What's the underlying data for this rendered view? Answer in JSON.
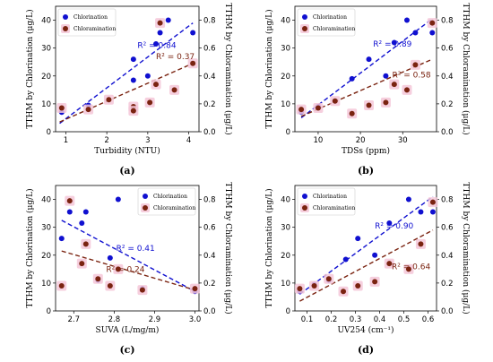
{
  "colors": {
    "chlorination": "#1010d0",
    "chloramination": "#7a2310",
    "halo": "#f4c7d8"
  },
  "chart_data": [
    {
      "id": "a",
      "type": "scatter",
      "panel_label": "(a)",
      "xlabel": "Turbidity (NTU)",
      "ylabel_left": "TTHM by Chlorination (μg/L)",
      "ylabel_right": "TTHM by Chloramination (μg/L)",
      "xlim": [
        0.75,
        4.25
      ],
      "xticks": [
        "1",
        "2",
        "3",
        "4"
      ],
      "ylim_left": [
        0,
        45
      ],
      "yticks_left": [
        "0",
        "10",
        "20",
        "30",
        "40"
      ],
      "ylim_right": [
        0,
        0.9
      ],
      "yticks_right": [
        "0.0",
        "0.2",
        "0.4",
        "0.6",
        "0.8"
      ],
      "legend_position": "top-left",
      "series": [
        {
          "name": "Chlorination",
          "axis": "left",
          "x": [
            0.9,
            1.55,
            2.65,
            2.65,
            3.0,
            3.2,
            3.3,
            3.5,
            4.1
          ],
          "y": [
            7,
            9.5,
            18.5,
            26,
            20,
            31.5,
            35.5,
            40,
            35.5
          ],
          "r2": "R² = 0.84",
          "trend": [
            [
              0.85,
              3
            ],
            [
              4.1,
              39
            ]
          ]
        },
        {
          "name": "Chloramination",
          "axis": "right",
          "x": [
            0.9,
            1.55,
            2.05,
            2.65,
            2.65,
            3.05,
            3.2,
            3.3,
            3.65,
            4.1
          ],
          "y": [
            0.17,
            0.16,
            0.23,
            0.18,
            0.15,
            0.21,
            0.34,
            0.78,
            0.3,
            0.49
          ],
          "r2": "R² = 0.37",
          "trend": [
            [
              0.85,
              0.07
            ],
            [
              4.1,
              0.49
            ]
          ]
        }
      ]
    },
    {
      "id": "b",
      "type": "scatter",
      "panel_label": "(b)",
      "xlabel": "TDSs (ppm)",
      "ylabel_left": "TTHM by Chlorination (μg/L)",
      "ylabel_right": "TTHM by Chloramination (μg/L)",
      "xlim": [
        4.5,
        38
      ],
      "xticks": [
        "10",
        "20",
        "30"
      ],
      "ylim_left": [
        0,
        45
      ],
      "yticks_left": [
        "0",
        "10",
        "20",
        "30",
        "40"
      ],
      "ylim_right": [
        0,
        0.9
      ],
      "yticks_right": [
        "0.0",
        "0.2",
        "0.4",
        "0.6",
        "0.8"
      ],
      "legend_position": "top-left",
      "series": [
        {
          "name": "Chlorination",
          "axis": "left",
          "x": [
            6,
            10,
            14,
            18,
            22,
            26,
            28,
            31,
            33,
            37
          ],
          "y": [
            7,
            9,
            11,
            19,
            26,
            20,
            32,
            40,
            35.5,
            35.5
          ],
          "r2": "R² = 0.89",
          "trend": [
            [
              6,
              5
            ],
            [
              37,
              40.5
            ]
          ]
        },
        {
          "name": "Chloramination",
          "axis": "right",
          "x": [
            6,
            10,
            14,
            18,
            22,
            26,
            28,
            31,
            33,
            37
          ],
          "y": [
            0.16,
            0.17,
            0.22,
            0.13,
            0.19,
            0.21,
            0.34,
            0.3,
            0.48,
            0.78
          ],
          "r2": "R² = 0.58",
          "trend": [
            [
              6,
              0.11
            ],
            [
              37,
              0.52
            ]
          ]
        }
      ]
    },
    {
      "id": "c",
      "type": "scatter",
      "panel_label": "(c)",
      "xlabel": "SUVA (L/mg/m)",
      "ylabel_left": "TTHM by Chlorination (μg/L)",
      "ylabel_right": "TTHM by Chloramination (μg/L)",
      "xlim": [
        2.655,
        3.01
      ],
      "xticks": [
        "2.7",
        "2.8",
        "2.9",
        "3.0"
      ],
      "ylim_left": [
        0,
        45
      ],
      "yticks_left": [
        "0",
        "10",
        "20",
        "30",
        "40"
      ],
      "ylim_right": [
        0,
        0.9
      ],
      "yticks_right": [
        "0.0",
        "0.2",
        "0.4",
        "0.6",
        "0.8"
      ],
      "legend_position": "top-right",
      "series": [
        {
          "name": "Chlorination",
          "axis": "left",
          "x": [
            2.67,
            2.69,
            2.72,
            2.73,
            2.76,
            2.79,
            2.81,
            2.87,
            3.0
          ],
          "y": [
            26,
            35.5,
            31.5,
            35.5,
            11,
            19,
            40,
            8,
            7
          ],
          "r2": "R² = 0.41",
          "trend": [
            [
              2.67,
              32.5
            ],
            [
              3.0,
              7
            ]
          ]
        },
        {
          "name": "Chloramination",
          "axis": "right",
          "x": [
            2.67,
            2.69,
            2.72,
            2.73,
            2.76,
            2.79,
            2.81,
            2.87,
            3.0
          ],
          "y": [
            0.18,
            0.79,
            0.34,
            0.48,
            0.23,
            0.18,
            0.3,
            0.15,
            0.16
          ],
          "r2": "R² = 0.24",
          "trend": [
            [
              2.67,
              0.43
            ],
            [
              3.0,
              0.15
            ]
          ]
        }
      ]
    },
    {
      "id": "d",
      "type": "scatter",
      "panel_label": "(d)",
      "xlabel": "UV254 (cm⁻¹)",
      "ylabel_left": "TTHM by Chlorination (μg/L)",
      "ylabel_right": "TTHM by Chloramination (μg/L)",
      "xlim": [
        0.05,
        0.635
      ],
      "xticks": [
        "0.1",
        "0.2",
        "0.3",
        "0.4",
        "0.5",
        "0.6"
      ],
      "ylim_left": [
        0,
        45
      ],
      "yticks_left": [
        "0",
        "10",
        "20",
        "30",
        "40"
      ],
      "ylim_right": [
        0,
        0.9
      ],
      "yticks_right": [
        "0.0",
        "0.2",
        "0.4",
        "0.6",
        "0.8"
      ],
      "legend_position": "top-left",
      "series": [
        {
          "name": "Chlorination",
          "axis": "left",
          "x": [
            0.07,
            0.13,
            0.19,
            0.26,
            0.31,
            0.38,
            0.44,
            0.52,
            0.57,
            0.62
          ],
          "y": [
            7,
            9.5,
            11,
            18.5,
            26,
            20,
            31.5,
            40,
            35.5,
            35.5
          ],
          "r2": "R² = 0.90",
          "trend": [
            [
              0.07,
              6
            ],
            [
              0.62,
              41
            ]
          ]
        },
        {
          "name": "Chloramination",
          "axis": "right",
          "x": [
            0.07,
            0.13,
            0.19,
            0.25,
            0.31,
            0.38,
            0.44,
            0.52,
            0.57,
            0.62
          ],
          "y": [
            0.16,
            0.18,
            0.23,
            0.14,
            0.18,
            0.21,
            0.34,
            0.3,
            0.48,
            0.78
          ],
          "r2": "R² = 0.64",
          "trend": [
            [
              0.07,
              0.07
            ],
            [
              0.62,
              0.58
            ]
          ]
        }
      ]
    }
  ]
}
